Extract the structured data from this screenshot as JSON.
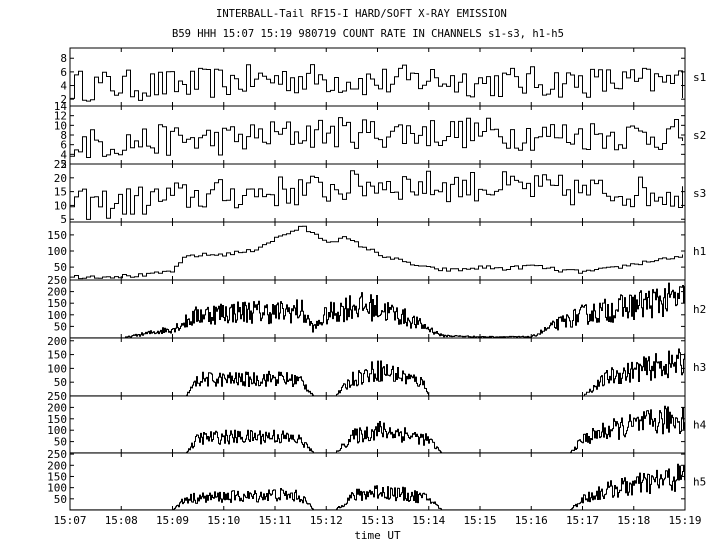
{
  "title": "INTERBALL-Tail RF15-I HARD/SOFT X-RAY EMISSION",
  "subtitle": "B59 HHH 15:07 15:19 980719  COUNT RATE IN CHANNELS s1-s3, h1-h5",
  "chart_data": {
    "type": "line",
    "title": "INTERBALL-Tail RF15-I HARD/SOFT X-RAY EMISSION",
    "subtitle": "B59 HHH 15:07 15:19 980719  COUNT RATE IN CHANNELS s1-s3, h1-h5",
    "xlabel": "time UT",
    "xlim": [
      "15:07",
      "15:19"
    ],
    "x_ticks": [
      "15:07",
      "15:08",
      "15:09",
      "15:10",
      "15:11",
      "15:12",
      "15:13",
      "15:14",
      "15:15",
      "15:16",
      "15:17",
      "15:18",
      "15:19"
    ],
    "series": [
      {
        "name": "s1",
        "ylim": [
          1,
          9.5
        ],
        "yticks": [
          "2",
          "4",
          "6",
          "8"
        ],
        "x": [
          "15:07",
          "15:08",
          "15:09",
          "15:10",
          "15:11",
          "15:12",
          "15:13",
          "15:14",
          "15:15",
          "15:16",
          "15:17",
          "15:18",
          "15:19"
        ],
        "values": [
          4,
          4,
          4,
          4.5,
          5,
          5,
          4.5,
          5,
          4.5,
          4.5,
          4.5,
          4.5,
          4.5
        ]
      },
      {
        "name": "s2",
        "ylim": [
          2,
          14
        ],
        "yticks": [
          "2",
          "4",
          "6",
          "8",
          "10",
          "12",
          "14"
        ],
        "x": [
          "15:07",
          "15:08",
          "15:09",
          "15:10",
          "15:11",
          "15:12",
          "15:13",
          "15:14",
          "15:15",
          "15:16",
          "15:17",
          "15:18",
          "15:19"
        ],
        "values": [
          6,
          6.5,
          7,
          7,
          8,
          8.5,
          8.5,
          8.5,
          8.5,
          8,
          8,
          8,
          8
        ]
      },
      {
        "name": "s3",
        "ylim": [
          4,
          25
        ],
        "yticks": [
          "5",
          "10",
          "15",
          "20",
          "25"
        ],
        "x": [
          "15:07",
          "15:08",
          "15:09",
          "15:10",
          "15:11",
          "15:12",
          "15:13",
          "15:14",
          "15:15",
          "15:16",
          "15:17",
          "15:18",
          "15:19"
        ],
        "values": [
          10,
          11,
          13,
          14,
          15,
          16,
          18,
          17,
          17,
          16,
          15,
          15,
          14
        ]
      },
      {
        "name": "h1",
        "ylim": [
          10,
          190
        ],
        "yticks": [
          "50",
          "100",
          "150"
        ],
        "x": [
          "15:07",
          "15:08",
          "15:08:30",
          "15:09",
          "15:09:15",
          "15:10",
          "15:10:30",
          "15:11",
          "15:11:30",
          "15:11:45",
          "15:12",
          "15:12:20",
          "15:13",
          "15:13:30",
          "15:14",
          "15:14:30",
          "15:15",
          "15:15:30",
          "15:16",
          "15:16:30",
          "15:17",
          "15:17:30",
          "15:18",
          "15:18:30",
          "15:19"
        ],
        "values": [
          20,
          22,
          25,
          40,
          85,
          90,
          100,
          140,
          175,
          150,
          130,
          140,
          90,
          65,
          45,
          40,
          50,
          45,
          55,
          40,
          35,
          45,
          60,
          75,
          85
        ]
      },
      {
        "name": "h2",
        "ylim": [
          0,
          250
        ],
        "yticks": [
          "50",
          "100",
          "150",
          "200",
          "250"
        ],
        "x": [
          "15:07",
          "15:08",
          "15:09",
          "15:09:30",
          "15:10",
          "15:10:30",
          "15:11",
          "15:11:30",
          "15:11:45",
          "15:12",
          "15:12:30",
          "15:13",
          "15:13:30",
          "15:14",
          "15:14:15",
          "15:15",
          "15:16",
          "15:16:30",
          "15:17",
          "15:17:30",
          "15:18",
          "15:18:30",
          "15:19"
        ],
        "values": [
          0,
          0,
          40,
          100,
          110,
          115,
          110,
          120,
          40,
          100,
          140,
          130,
          90,
          40,
          10,
          5,
          5,
          60,
          100,
          120,
          140,
          160,
          170
        ]
      },
      {
        "name": "h3",
        "ylim": [
          0,
          210
        ],
        "yticks": [
          "50",
          "100",
          "150",
          "200"
        ],
        "x": [
          "15:07",
          "15:09:15",
          "15:09:30",
          "15:10",
          "15:10:30",
          "15:11",
          "15:11:30",
          "15:11:45",
          "15:12:10",
          "15:12:30",
          "15:13",
          "15:13:30",
          "15:13:55",
          "15:14",
          "15:17",
          "15:17:30",
          "15:18",
          "15:18:30",
          "15:19"
        ],
        "values": [
          0,
          0,
          60,
          60,
          60,
          65,
          55,
          0,
          0,
          60,
          95,
          70,
          45,
          0,
          0,
          70,
          90,
          110,
          120
        ]
      },
      {
        "name": "h4",
        "ylim": [
          0,
          250
        ],
        "yticks": [
          "50",
          "100",
          "150",
          "200",
          "250"
        ],
        "x": [
          "15:07",
          "15:09:15",
          "15:09:30",
          "15:10",
          "15:10:30",
          "15:11",
          "15:11:30",
          "15:11:45",
          "15:12:10",
          "15:12:30",
          "15:13",
          "15:13:30",
          "15:14",
          "15:14:15",
          "15:16:45",
          "15:17",
          "15:17:30",
          "15:18",
          "15:18:30",
          "15:19"
        ],
        "values": [
          0,
          0,
          65,
          70,
          70,
          75,
          55,
          0,
          0,
          70,
          100,
          85,
          55,
          0,
          0,
          60,
          100,
          120,
          140,
          155
        ]
      },
      {
        "name": "h5",
        "ylim": [
          0,
          255
        ],
        "yticks": [
          "50",
          "100",
          "150",
          "200",
          "250"
        ],
        "x": [
          "15:07",
          "15:09:00",
          "15:09:15",
          "15:10",
          "15:10:30",
          "15:11",
          "15:11:30",
          "15:11:45",
          "15:12:10",
          "15:12:30",
          "15:13",
          "15:13:30",
          "15:14",
          "15:14:15",
          "15:16:45",
          "15:17",
          "15:17:30",
          "15:18",
          "15:18:30",
          "15:19"
        ],
        "values": [
          0,
          0,
          50,
          60,
          60,
          70,
          60,
          0,
          0,
          60,
          85,
          70,
          50,
          0,
          0,
          50,
          90,
          110,
          130,
          150
        ]
      }
    ]
  }
}
